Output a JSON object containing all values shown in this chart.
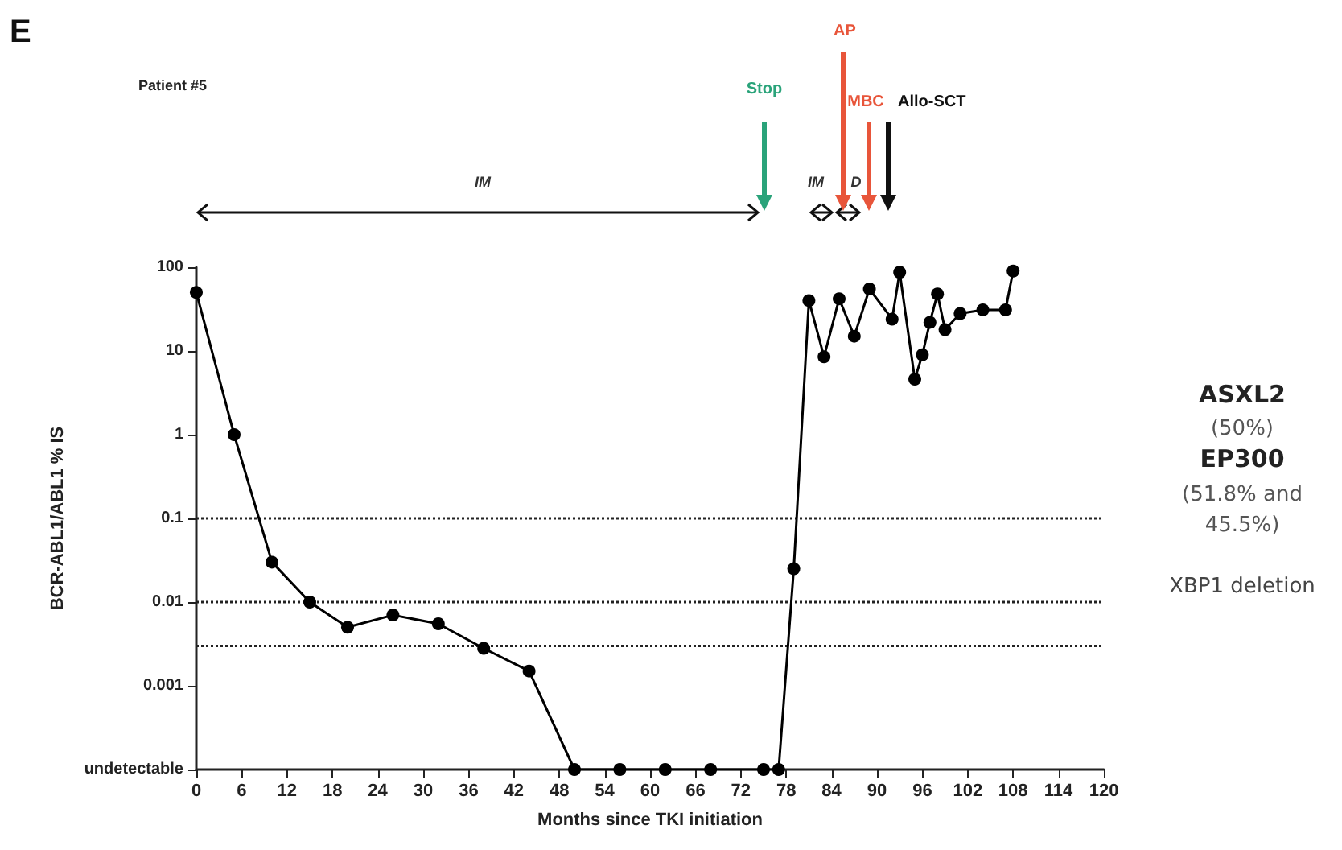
{
  "chart_data": {
    "type": "line",
    "title": "E",
    "xlabel": "Months since TKI initiation",
    "ylabel": "BCR-ABL1/ABL1 % IS",
    "x": [
      0,
      5,
      10,
      15,
      20,
      26,
      32,
      38,
      44,
      50,
      56,
      62,
      68,
      75,
      77,
      79,
      81,
      83,
      85,
      87,
      89,
      92,
      93,
      95,
      96,
      97,
      98,
      99,
      101,
      104,
      107,
      108
    ],
    "values": [
      50,
      1,
      0.03,
      0.01,
      0.005,
      0.007,
      0.0055,
      0.0028,
      0.0015,
      0.0001,
      0.0001,
      0.0001,
      0.0001,
      0.0001,
      0.0001,
      0.025,
      40,
      8.5,
      42,
      15,
      55,
      24,
      87,
      4.6,
      9,
      22,
      48,
      18,
      28,
      31,
      31,
      90
    ],
    "color": "#000000",
    "marker": "circle",
    "line_style": "solid",
    "log": "y",
    "xlim": [
      0,
      120
    ],
    "xticks": [
      0,
      6,
      12,
      18,
      24,
      30,
      36,
      42,
      48,
      54,
      60,
      66,
      72,
      78,
      84,
      90,
      96,
      102,
      108,
      114,
      120
    ],
    "ylim": [
      0.0001,
      100
    ],
    "yticks": [
      {
        "value": 0.0001,
        "label": "undetectable"
      },
      {
        "value": 0.001,
        "label": "0.001"
      },
      {
        "value": 0.01,
        "label": "0.01"
      },
      {
        "value": 0.1,
        "label": "0.1"
      },
      {
        "value": 1,
        "label": "1"
      },
      {
        "value": 10,
        "label": "10"
      },
      {
        "value": 100,
        "label": "100"
      }
    ],
    "ref_lines": [
      {
        "axis": "y",
        "value": 0.1,
        "line_style": "dotted"
      },
      {
        "axis": "y",
        "value": 0.01,
        "line_style": "dotted"
      },
      {
        "axis": "y",
        "value": 0.003,
        "line_style": "dotted"
      }
    ],
    "annotations": [
      "Patient #5",
      "IM",
      "Stop",
      "IM",
      "D",
      "AP",
      "MBC",
      "Allo-SCT",
      "ASXL2",
      "(50%)",
      "EP300",
      "(51.8% and",
      "45.5%)",
      "XBP1 deletion"
    ]
  }
}
